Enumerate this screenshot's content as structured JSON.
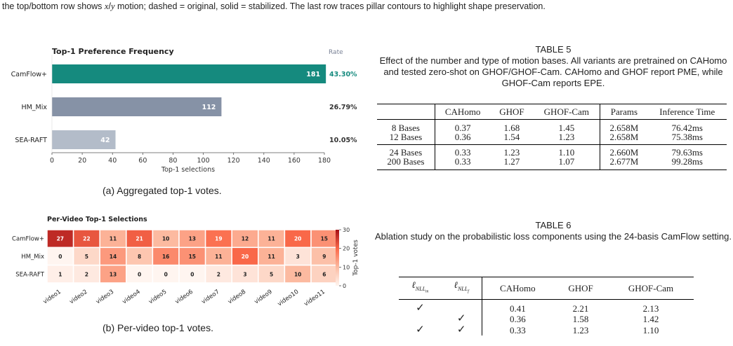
{
  "top_caption": "the top/bottom row shows x/y motion; dashed = original, solid = stabilized. The last row traces pillar contours to highlight shape preservation.",
  "chart_data": [
    {
      "type": "bar",
      "title": "Top-1 Preference Frequency",
      "rate_header": "Rate",
      "categories": [
        "CamFlow+",
        "HM_Mix",
        "SEA-RAFT"
      ],
      "values": [
        181,
        112,
        42
      ],
      "rates": [
        "43.30%",
        "26.79%",
        "10.05%"
      ],
      "colors": [
        "#158a7e",
        "#8692a6",
        "#b3bcc9"
      ],
      "xlabel": "Top-1 selections",
      "xlim": [
        0,
        180
      ],
      "xticks": [
        0,
        20,
        40,
        60,
        80,
        100,
        120,
        140,
        160,
        180
      ]
    },
    {
      "type": "heatmap",
      "title": "Per-Video Top-1 Selections",
      "rows": [
        "CamFlow+",
        "HM_Mix",
        "SEA-RAFT"
      ],
      "columns": [
        "video1",
        "video2",
        "video3",
        "video4",
        "video5",
        "video6",
        "video7",
        "video8",
        "video9",
        "video10",
        "video11"
      ],
      "values": [
        [
          27,
          22,
          11,
          21,
          10,
          13,
          19,
          12,
          11,
          20,
          15
        ],
        [
          0,
          5,
          14,
          8,
          16,
          15,
          11,
          20,
          11,
          3,
          9
        ],
        [
          1,
          2,
          13,
          0,
          0,
          0,
          2,
          3,
          5,
          10,
          6
        ]
      ],
      "colorbar_label": "Top-1 votes",
      "colorbar_ticks": [
        0,
        10,
        20,
        30
      ],
      "vmin": 0,
      "vmax": 30,
      "colormap": "Reds"
    }
  ],
  "caption_a": "(a) Aggregated top-1 votes.",
  "caption_b": "(b) Per-video top-1 votes.",
  "table5": {
    "label": "TABLE 5",
    "caption": "Effect of the number and type of motion bases. All variants are pretrained on CAHomo and tested zero-shot on GHOF/GHOF-Cam. CAHomo and GHOF report PME, while GHOF-Cam reports EPE.",
    "headers": [
      "",
      "CAHomo",
      "GHOF",
      "GHOF-Cam",
      "Params",
      "Inference Time"
    ],
    "rows": [
      [
        "8 Bases",
        "0.37",
        "1.68",
        "1.45",
        "2.658M",
        "76.42ms"
      ],
      [
        "12 Bases",
        "0.36",
        "1.54",
        "1.23",
        "2.658M",
        "75.38ms"
      ],
      [
        "24 Bases",
        "0.33",
        "1.23",
        "1.10",
        "2.660M",
        "79.63ms"
      ],
      [
        "200 Bases",
        "0.33",
        "1.27",
        "1.07",
        "2.677M",
        "99.28ms"
      ]
    ]
  },
  "table6": {
    "label": "TABLE 6",
    "caption": "Ablation study on the probabilistic loss components using the 24-basis CamFlow setting.",
    "headers": [
      "CAHomo",
      "GHOF",
      "GHOF-Cam"
    ],
    "check": "✓",
    "rows": [
      {
        "m": true,
        "f": false,
        "vals": [
          "0.41",
          "2.21",
          "2.13"
        ]
      },
      {
        "m": false,
        "f": true,
        "vals": [
          "0.36",
          "1.58",
          "1.42"
        ]
      },
      {
        "m": true,
        "f": true,
        "vals": [
          "0.33",
          "1.23",
          "1.10"
        ]
      }
    ]
  }
}
